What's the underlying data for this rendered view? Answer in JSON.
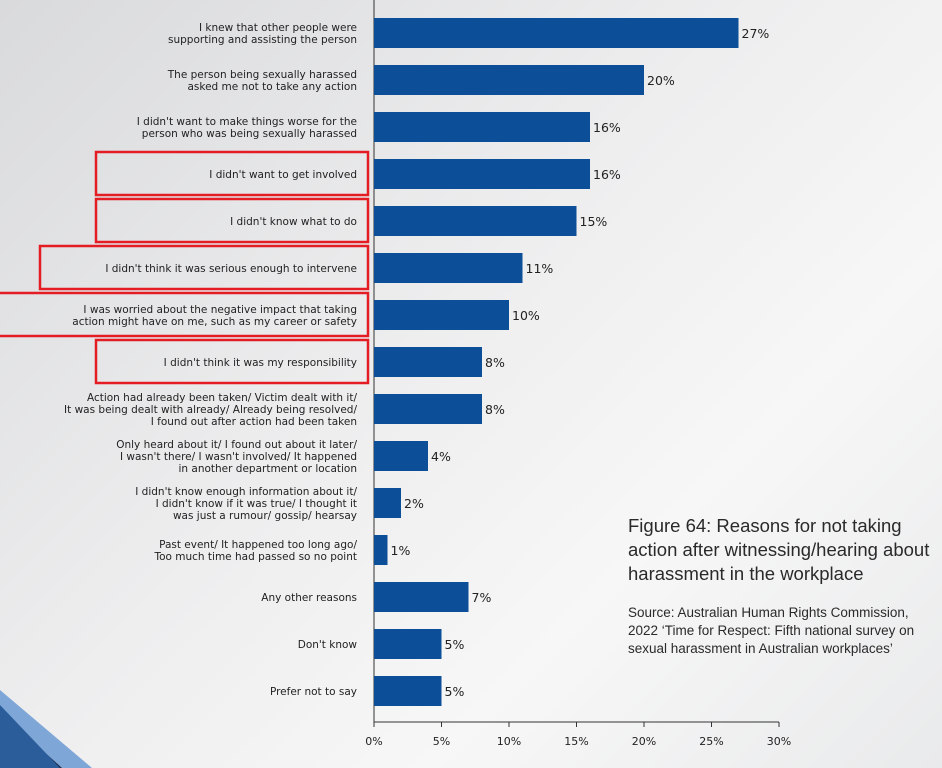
{
  "chart_data": {
    "type": "bar",
    "orientation": "horizontal",
    "categories": [
      [
        "I knew that other people were",
        "supporting and assisting the person"
      ],
      [
        "The person being sexually harassed",
        "asked me not to take any action"
      ],
      [
        "I didn't want to make things worse for the",
        "person who was being sexually harassed"
      ],
      [
        "I didn't want to get involved"
      ],
      [
        "I didn't know what to do"
      ],
      [
        "I didn't think it was serious enough to intervene"
      ],
      [
        "I was worried about the negative impact that taking",
        "action might have on me, such as my career or safety"
      ],
      [
        "I didn't think it was my responsibility"
      ],
      [
        "Action had already been taken/ Victim dealt with it/",
        "It was being dealt with already/ Already being resolved/",
        "I found out after action had been taken"
      ],
      [
        "Only heard about it/ I found out about it later/",
        "I wasn't there/ I wasn't involved/ It happened",
        "in another department or location"
      ],
      [
        "I didn't know enough information about it/",
        "I didn't know if it was true/ I thought it",
        "was just a rumour/ gossip/ hearsay"
      ],
      [
        "Past event/ It happened too long ago/",
        "Too much time had passed so no point"
      ],
      [
        "Any other reasons"
      ],
      [
        "Don't know"
      ],
      [
        "Prefer not to say"
      ]
    ],
    "values": [
      27,
      20,
      16,
      16,
      15,
      11,
      10,
      8,
      8,
      4,
      2,
      1,
      7,
      5,
      5
    ],
    "value_labels": [
      "27%",
      "20%",
      "16%",
      "16%",
      "15%",
      "11%",
      "10%",
      "8%",
      "8%",
      "4%",
      "2%",
      "1%",
      "7%",
      "5%",
      "5%"
    ],
    "highlighted": [
      3,
      4,
      5,
      6,
      7
    ],
    "xlim": [
      0,
      30
    ],
    "xticks": [
      0,
      5,
      10,
      15,
      20,
      25,
      30
    ],
    "xtick_labels": [
      "0%",
      "5%",
      "10%",
      "15%",
      "20%",
      "25%",
      "30%"
    ],
    "grid": false,
    "colors": {
      "bar": "#0c4e97",
      "highlight_box": "#e41d25"
    }
  },
  "caption": {
    "title": "Figure 64: Reasons for not taking action after witnessing/hearing about harassment in the workplace",
    "source": "Source: Australian Human Rights Commission, 2022 ‘Time for Respect: Fifth national survey on sexual harassment in Australian workplaces’"
  }
}
